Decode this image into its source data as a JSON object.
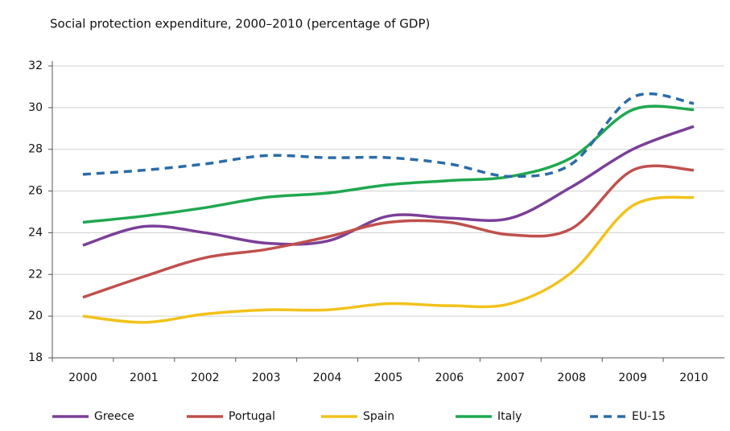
{
  "chart_data": {
    "type": "line",
    "title": "Social protection expenditure, 2000–2010 (percentage of GDP)",
    "categories": [
      "2000",
      "2001",
      "2002",
      "2003",
      "2004",
      "2005",
      "2006",
      "2007",
      "2008",
      "2009",
      "2010"
    ],
    "series": [
      {
        "name": "Greece",
        "color": "#7b3f98",
        "values": [
          23.4,
          24.3,
          24.0,
          23.5,
          23.6,
          24.8,
          24.7,
          24.7,
          26.2,
          28.0,
          29.1
        ]
      },
      {
        "name": "Portugal",
        "color": "#c0504d",
        "values": [
          20.9,
          21.9,
          22.8,
          23.2,
          23.8,
          24.5,
          24.5,
          23.9,
          24.2,
          27.0,
          27.0
        ]
      },
      {
        "name": "Spain",
        "color": "#f2c21b",
        "values": [
          20.0,
          19.7,
          20.1,
          20.3,
          20.3,
          20.6,
          20.5,
          20.6,
          22.1,
          25.3,
          25.7
        ]
      },
      {
        "name": "Italy",
        "color": "#1fa84f",
        "values": [
          24.5,
          24.8,
          25.2,
          25.7,
          25.9,
          26.3,
          26.5,
          26.7,
          27.6,
          29.9,
          29.9
        ]
      },
      {
        "name": "EU-15",
        "color": "#2b6ca8",
        "dashed": true,
        "values": [
          26.8,
          27.0,
          27.3,
          27.7,
          27.6,
          27.6,
          27.3,
          26.7,
          27.3,
          30.5,
          30.2
        ]
      }
    ],
    "ylim": [
      18,
      32
    ],
    "yticks": [
      18,
      20,
      22,
      24,
      26,
      28,
      30,
      32
    ],
    "grid": true,
    "legend": "bottom"
  }
}
